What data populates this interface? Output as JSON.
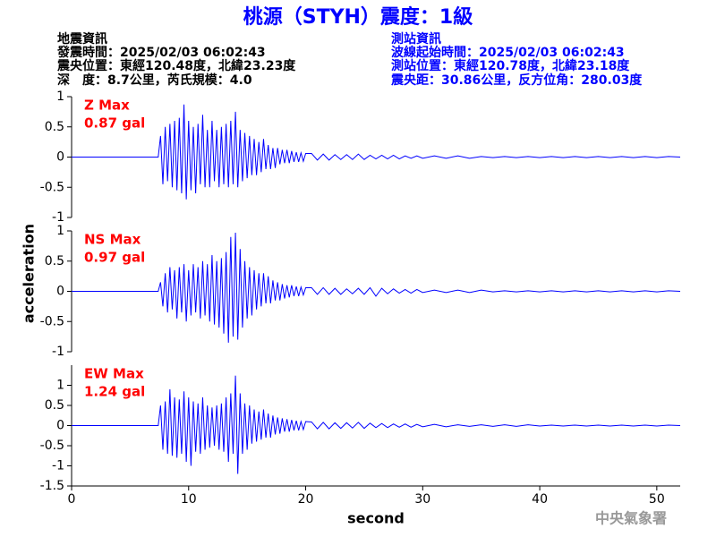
{
  "header": {
    "title": "桃源（STYH）震度：1級",
    "left": [
      "地震資訊",
      "發震時間：2025/02/03 06:02:43",
      "震央位置：東經120.48度，北緯23.23度",
      "深　度：8.7公里，芮氏規模：4.0"
    ],
    "right": [
      "測站資訊",
      "波線起始時間：2025/02/03 06:02:43",
      "測站位置：東經120.78度，北緯23.18度",
      "震央距：30.86公里，反方位角：280.03度"
    ],
    "watermark": "中央氣象署"
  },
  "chart_data": [
    {
      "type": "line",
      "xlim": [
        0,
        52
      ],
      "ylim": [
        -1,
        1
      ],
      "yticks": [
        -1,
        -0.5,
        0,
        0.5,
        1
      ],
      "max_label": "0.87 gal",
      "x": [
        0,
        7.4,
        7.6,
        7.8,
        8.0,
        8.2,
        8.4,
        8.6,
        8.8,
        9.0,
        9.2,
        9.4,
        9.6,
        9.8,
        10.0,
        10.2,
        10.4,
        10.6,
        10.8,
        11.0,
        11.2,
        11.4,
        11.6,
        11.8,
        12.0,
        12.2,
        12.4,
        12.6,
        12.8,
        13.0,
        13.2,
        13.4,
        13.6,
        13.8,
        14.0,
        14.2,
        14.4,
        14.6,
        14.8,
        15.0,
        15.2,
        15.4,
        15.6,
        15.8,
        16.0,
        16.2,
        16.4,
        16.6,
        16.8,
        17.0,
        17.2,
        17.4,
        17.6,
        17.8,
        18.0,
        18.2,
        18.4,
        18.6,
        18.8,
        19.0,
        19.2,
        19.4,
        19.6,
        19.8,
        20.0,
        20.5,
        21,
        21.5,
        22,
        22.5,
        23,
        23.5,
        24,
        24.5,
        25,
        25.5,
        26,
        26.5,
        27,
        27.5,
        28,
        28.5,
        29,
        29.5,
        30,
        31,
        32,
        33,
        34,
        35,
        36,
        37,
        38,
        39,
        40,
        41,
        42,
        43,
        44,
        45,
        46,
        47,
        48,
        49,
        50,
        51,
        52
      ],
      "series": [
        {
          "name": "Z Max",
          "color": "#0000ff",
          "values": [
            0,
            0,
            0.35,
            -0.45,
            0.5,
            -0.4,
            0.55,
            -0.5,
            0.6,
            -0.55,
            0.65,
            -0.6,
            0.87,
            -0.7,
            0.6,
            -0.55,
            0.5,
            -0.6,
            0.55,
            -0.45,
            0.7,
            -0.5,
            0.45,
            -0.5,
            0.6,
            -0.4,
            0.45,
            -0.5,
            0.5,
            -0.45,
            0.55,
            -0.5,
            0.6,
            -0.45,
            0.75,
            -0.5,
            0.45,
            -0.4,
            0.4,
            -0.35,
            0.35,
            -0.3,
            0.3,
            -0.3,
            0.25,
            -0.25,
            0.3,
            -0.2,
            0.2,
            -0.2,
            0.15,
            -0.18,
            0.15,
            -0.12,
            0.12,
            -0.1,
            0.12,
            -0.1,
            0.1,
            -0.08,
            0.08,
            -0.08,
            0.07,
            -0.07,
            0.06,
            0.06,
            -0.05,
            0.05,
            -0.05,
            0.04,
            -0.04,
            0.04,
            -0.04,
            0.05,
            -0.04,
            0.03,
            -0.03,
            0.03,
            -0.03,
            0.03,
            -0.03,
            0.02,
            -0.02,
            0.02,
            -0.02,
            0.02,
            -0.02,
            0.02,
            -0.02,
            0.01,
            -0.01,
            0.01,
            -0.01,
            0.01,
            -0.01,
            0.01,
            -0.01,
            0.01,
            -0.01,
            0.01,
            -0.01,
            0.01,
            -0.01,
            0.01,
            -0.01,
            0.01,
            0
          ]
        }
      ]
    },
    {
      "type": "line",
      "xlim": [
        0,
        52
      ],
      "ylim": [
        -1,
        1
      ],
      "yticks": [
        -1,
        -0.5,
        0,
        0.5,
        1
      ],
      "max_label": "0.97 gal",
      "ylabel": "acceleration",
      "x": [
        0,
        7.4,
        7.6,
        7.8,
        8.0,
        8.2,
        8.4,
        8.6,
        8.8,
        9.0,
        9.2,
        9.4,
        9.6,
        9.8,
        10.0,
        10.2,
        10.4,
        10.6,
        10.8,
        11.0,
        11.2,
        11.4,
        11.6,
        11.8,
        12.0,
        12.2,
        12.4,
        12.6,
        12.8,
        13.0,
        13.2,
        13.4,
        13.6,
        13.8,
        14.0,
        14.2,
        14.4,
        14.6,
        14.8,
        15.0,
        15.2,
        15.4,
        15.6,
        15.8,
        16.0,
        16.2,
        16.4,
        16.6,
        16.8,
        17.0,
        17.2,
        17.4,
        17.6,
        17.8,
        18.0,
        18.2,
        18.4,
        18.6,
        18.8,
        19.0,
        19.2,
        19.4,
        19.6,
        19.8,
        20.0,
        20.5,
        21,
        21.5,
        22,
        22.5,
        23,
        23.5,
        24,
        24.5,
        25,
        25.5,
        26,
        26.5,
        27,
        27.5,
        28,
        28.5,
        29,
        29.5,
        30,
        31,
        32,
        33,
        34,
        35,
        36,
        37,
        38,
        39,
        40,
        41,
        42,
        43,
        44,
        45,
        46,
        47,
        48,
        49,
        50,
        51,
        52
      ],
      "series": [
        {
          "name": "NS Max",
          "color": "#0000ff",
          "values": [
            0,
            0,
            0.15,
            -0.25,
            0.3,
            -0.35,
            0.4,
            -0.3,
            0.35,
            -0.45,
            0.4,
            -0.35,
            0.45,
            -0.5,
            0.35,
            -0.4,
            0.45,
            -0.35,
            0.4,
            -0.45,
            0.5,
            -0.4,
            0.45,
            -0.5,
            0.6,
            -0.55,
            0.5,
            -0.6,
            0.55,
            -0.7,
            0.65,
            -0.85,
            0.9,
            -0.75,
            0.97,
            -0.8,
            0.7,
            -0.6,
            0.5,
            -0.45,
            0.4,
            -0.4,
            0.35,
            -0.3,
            0.3,
            -0.25,
            0.3,
            -0.2,
            0.25,
            -0.2,
            0.18,
            -0.15,
            0.15,
            -0.15,
            0.12,
            -0.12,
            0.1,
            -0.1,
            0.1,
            -0.08,
            0.08,
            -0.08,
            0.07,
            -0.06,
            0.06,
            0.06,
            -0.05,
            0.06,
            -0.05,
            0.05,
            -0.05,
            0.04,
            -0.04,
            0.05,
            -0.05,
            0.06,
            -0.08,
            0.05,
            -0.04,
            0.04,
            -0.03,
            0.03,
            -0.03,
            0.03,
            -0.02,
            0.02,
            -0.02,
            0.02,
            -0.02,
            0.02,
            -0.01,
            0.01,
            -0.01,
            0.01,
            -0.01,
            0.01,
            -0.01,
            0.01,
            -0.01,
            0.01,
            -0.01,
            0.01,
            -0.01,
            0.01,
            -0.01,
            0.01,
            0
          ]
        }
      ]
    },
    {
      "type": "line",
      "xlim": [
        0,
        52
      ],
      "ylim": [
        -1.5,
        1.5
      ],
      "yticks": [
        -1.5,
        -1,
        -0.5,
        0,
        0.5,
        1
      ],
      "xticks": [
        0,
        10,
        20,
        30,
        40,
        50
      ],
      "xlabel": "second",
      "max_label": "1.24 gal",
      "x": [
        0,
        7.4,
        7.6,
        7.8,
        8.0,
        8.2,
        8.4,
        8.6,
        8.8,
        9.0,
        9.2,
        9.4,
        9.6,
        9.8,
        10.0,
        10.2,
        10.4,
        10.6,
        10.8,
        11.0,
        11.2,
        11.4,
        11.6,
        11.8,
        12.0,
        12.2,
        12.4,
        12.6,
        12.8,
        13.0,
        13.2,
        13.4,
        13.6,
        13.8,
        14.0,
        14.2,
        14.4,
        14.6,
        14.8,
        15.0,
        15.2,
        15.4,
        15.6,
        15.8,
        16.0,
        16.2,
        16.4,
        16.6,
        16.8,
        17.0,
        17.2,
        17.4,
        17.6,
        17.8,
        18.0,
        18.2,
        18.4,
        18.6,
        18.8,
        19.0,
        19.2,
        19.4,
        19.6,
        19.8,
        20.0,
        20.5,
        21,
        21.5,
        22,
        22.5,
        23,
        23.5,
        24,
        24.5,
        25,
        25.5,
        26,
        26.5,
        27,
        27.5,
        28,
        28.5,
        29,
        29.5,
        30,
        31,
        32,
        33,
        34,
        35,
        36,
        37,
        38,
        39,
        40,
        41,
        42,
        43,
        44,
        45,
        46,
        47,
        48,
        49,
        50,
        51,
        52
      ],
      "series": [
        {
          "name": "EW Max",
          "color": "#0000ff",
          "values": [
            0,
            0,
            0.5,
            -0.6,
            0.6,
            -0.7,
            0.9,
            -0.75,
            0.7,
            -0.8,
            0.65,
            -0.7,
            0.85,
            -0.9,
            0.7,
            -1.0,
            0.6,
            -0.65,
            0.55,
            -0.7,
            0.7,
            -0.6,
            0.5,
            -0.55,
            0.45,
            -0.5,
            0.5,
            -0.6,
            0.55,
            -0.65,
            0.7,
            -0.9,
            0.8,
            -0.7,
            1.24,
            -1.2,
            0.8,
            -0.7,
            0.55,
            -0.6,
            0.5,
            -0.45,
            0.4,
            -0.4,
            0.35,
            -0.35,
            0.4,
            -0.3,
            0.3,
            -0.3,
            0.25,
            -0.22,
            0.2,
            -0.2,
            0.18,
            -0.15,
            0.16,
            -0.15,
            0.14,
            -0.12,
            0.12,
            -0.12,
            0.1,
            -0.1,
            0.1,
            0.09,
            -0.08,
            0.08,
            -0.08,
            0.07,
            -0.07,
            0.07,
            -0.06,
            0.08,
            -0.07,
            0.06,
            -0.05,
            0.05,
            -0.05,
            0.04,
            -0.04,
            0.04,
            -0.04,
            0.03,
            -0.03,
            0.03,
            -0.03,
            0.02,
            -0.02,
            0.02,
            -0.02,
            0.02,
            -0.02,
            0.02,
            -0.01,
            0.01,
            -0.01,
            0.01,
            -0.01,
            0.01,
            -0.01,
            0.01,
            -0.01,
            0.01,
            -0.01,
            0.01,
            0
          ]
        }
      ]
    }
  ]
}
